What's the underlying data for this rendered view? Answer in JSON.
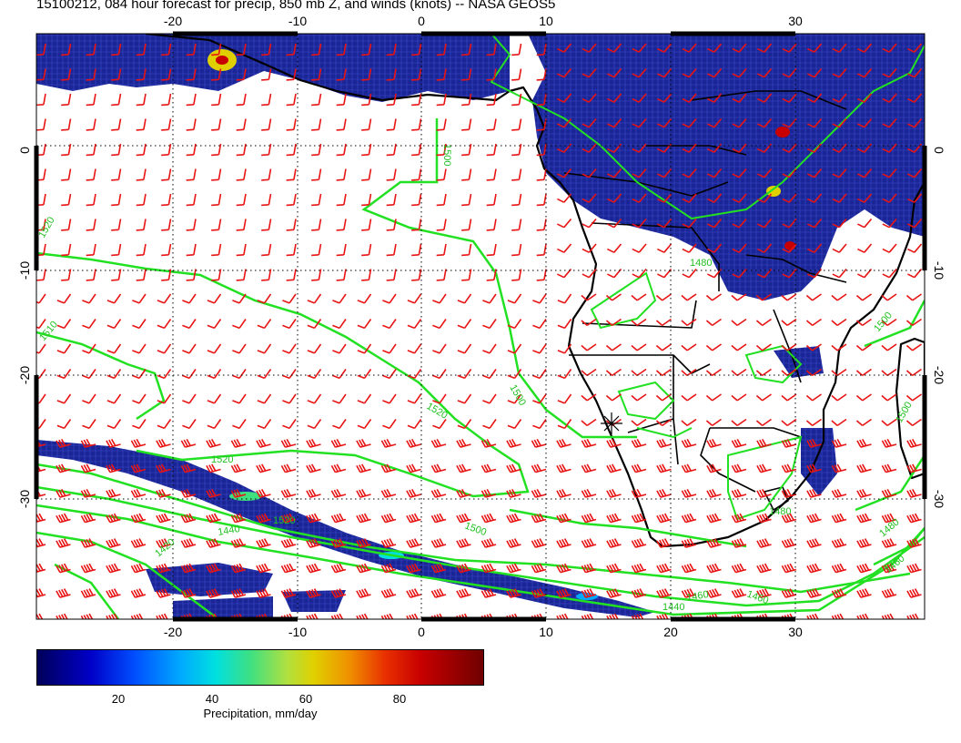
{
  "title": "15100212, 084 hour forecast for precip, 850 mb Z, and winds (knots) -- NASA GEOS5",
  "map": {
    "lon_labels_bottom": [
      "-20",
      "-10",
      "0",
      "10",
      "20",
      "30"
    ],
    "lon_labels_top": [
      "-20",
      "-10",
      "0",
      "10",
      "30"
    ],
    "lat_labels": [
      "0",
      "-10",
      "-20",
      "-30"
    ],
    "contour_labels": [
      "1520",
      "1510",
      "1520",
      "1520",
      "1500",
      "1500",
      "1480",
      "1460",
      "1440",
      "1420",
      "1480",
      "1460",
      "1460",
      "1440",
      "1500",
      "1500",
      "1480",
      "1520",
      "1500"
    ]
  },
  "colorbar": {
    "ticks": [
      "20",
      "40",
      "60",
      "80"
    ],
    "label": "Precipitation, mm/day"
  },
  "colors": {
    "precip_dark": "#1a1f8c",
    "contour": "#22e022",
    "wind_barb": "#e81414",
    "coast": "#000000"
  }
}
